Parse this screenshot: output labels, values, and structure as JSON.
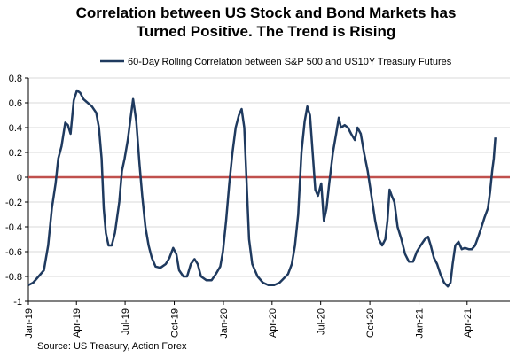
{
  "chart_data": {
    "type": "line",
    "title_line1": "Correlation between US Stock and Bond Markets has",
    "title_line2": "Turned Positive. The Trend is Rising",
    "source": "Source: US Treasury, Action Forex",
    "legend_position": "top",
    "grid": true,
    "ylim": [
      -1,
      0.8
    ],
    "yticks": [
      0.8,
      0.6,
      0.4,
      0.2,
      0,
      -0.2,
      -0.4,
      -0.6,
      -0.8,
      -1
    ],
    "ytick_labels": [
      "0.8",
      "0.6",
      "0.4",
      "0.2",
      "0",
      "-0.2",
      "-0.4",
      "-0.6",
      "-0.8",
      "-1"
    ],
    "xlim": [
      "2019-01-01",
      "2021-06-20"
    ],
    "xticks": [
      {
        "date": "2019-01-01",
        "label": "Jan-19"
      },
      {
        "date": "2019-04-01",
        "label": "Apr-19"
      },
      {
        "date": "2019-07-01",
        "label": "Jul-19"
      },
      {
        "date": "2019-10-01",
        "label": "Oct-19"
      },
      {
        "date": "2020-01-01",
        "label": "Jan-20"
      },
      {
        "date": "2020-04-01",
        "label": "Apr-20"
      },
      {
        "date": "2020-07-01",
        "label": "Jul-20"
      },
      {
        "date": "2020-10-01",
        "label": "Oct-20"
      },
      {
        "date": "2021-01-01",
        "label": "Jan-21"
      },
      {
        "date": "2021-04-01",
        "label": "Apr-21"
      }
    ],
    "zero_line_color": "#c0504d",
    "series": [
      {
        "name": "60-Day Rolling Correlation between S&P 500 and US10Y Treasury Futures",
        "color": "#1f3a5f",
        "points": [
          [
            "2019-01-01",
            -0.87
          ],
          [
            "2019-01-10",
            -0.85
          ],
          [
            "2019-01-20",
            -0.8
          ],
          [
            "2019-01-30",
            -0.75
          ],
          [
            "2019-02-07",
            -0.55
          ],
          [
            "2019-02-14",
            -0.25
          ],
          [
            "2019-02-21",
            -0.05
          ],
          [
            "2019-02-26",
            0.15
          ],
          [
            "2019-03-04",
            0.25
          ],
          [
            "2019-03-11",
            0.44
          ],
          [
            "2019-03-16",
            0.42
          ],
          [
            "2019-03-21",
            0.35
          ],
          [
            "2019-03-27",
            0.62
          ],
          [
            "2019-04-02",
            0.7
          ],
          [
            "2019-04-08",
            0.68
          ],
          [
            "2019-04-14",
            0.63
          ],
          [
            "2019-04-22",
            0.6
          ],
          [
            "2019-04-30",
            0.57
          ],
          [
            "2019-05-08",
            0.52
          ],
          [
            "2019-05-13",
            0.4
          ],
          [
            "2019-05-18",
            0.15
          ],
          [
            "2019-05-22",
            -0.25
          ],
          [
            "2019-05-26",
            -0.45
          ],
          [
            "2019-05-31",
            -0.55
          ],
          [
            "2019-06-06",
            -0.55
          ],
          [
            "2019-06-12",
            -0.45
          ],
          [
            "2019-06-20",
            -0.2
          ],
          [
            "2019-06-25",
            0.05
          ],
          [
            "2019-06-30",
            0.15
          ],
          [
            "2019-07-06",
            0.3
          ],
          [
            "2019-07-12",
            0.5
          ],
          [
            "2019-07-16",
            0.63
          ],
          [
            "2019-07-22",
            0.45
          ],
          [
            "2019-07-28",
            0.1
          ],
          [
            "2019-08-02",
            -0.15
          ],
          [
            "2019-08-08",
            -0.4
          ],
          [
            "2019-08-14",
            -0.55
          ],
          [
            "2019-08-20",
            -0.65
          ],
          [
            "2019-08-27",
            -0.72
          ],
          [
            "2019-09-05",
            -0.73
          ],
          [
            "2019-09-15",
            -0.7
          ],
          [
            "2019-09-22",
            -0.65
          ],
          [
            "2019-09-29",
            -0.57
          ],
          [
            "2019-10-05",
            -0.62
          ],
          [
            "2019-10-10",
            -0.75
          ],
          [
            "2019-10-18",
            -0.8
          ],
          [
            "2019-10-25",
            -0.8
          ],
          [
            "2019-11-01",
            -0.7
          ],
          [
            "2019-11-08",
            -0.66
          ],
          [
            "2019-11-14",
            -0.7
          ],
          [
            "2019-11-20",
            -0.8
          ],
          [
            "2019-11-30",
            -0.83
          ],
          [
            "2019-12-10",
            -0.83
          ],
          [
            "2019-12-18",
            -0.78
          ],
          [
            "2019-12-26",
            -0.72
          ],
          [
            "2019-12-31",
            -0.6
          ],
          [
            "2020-01-06",
            -0.35
          ],
          [
            "2020-01-12",
            -0.05
          ],
          [
            "2020-01-18",
            0.2
          ],
          [
            "2020-01-24",
            0.4
          ],
          [
            "2020-01-30",
            0.5
          ],
          [
            "2020-02-04",
            0.55
          ],
          [
            "2020-02-09",
            0.4
          ],
          [
            "2020-02-14",
            -0.1
          ],
          [
            "2020-02-18",
            -0.5
          ],
          [
            "2020-02-24",
            -0.7
          ],
          [
            "2020-03-05",
            -0.8
          ],
          [
            "2020-03-15",
            -0.85
          ],
          [
            "2020-03-25",
            -0.87
          ],
          [
            "2020-04-05",
            -0.87
          ],
          [
            "2020-04-15",
            -0.85
          ],
          [
            "2020-04-22",
            -0.82
          ],
          [
            "2020-05-01",
            -0.78
          ],
          [
            "2020-05-08",
            -0.7
          ],
          [
            "2020-05-14",
            -0.55
          ],
          [
            "2020-05-20",
            -0.3
          ],
          [
            "2020-05-26",
            0.2
          ],
          [
            "2020-06-01",
            0.45
          ],
          [
            "2020-06-06",
            0.57
          ],
          [
            "2020-06-11",
            0.5
          ],
          [
            "2020-06-16",
            0.2
          ],
          [
            "2020-06-21",
            -0.1
          ],
          [
            "2020-06-26",
            -0.15
          ],
          [
            "2020-07-02",
            -0.05
          ],
          [
            "2020-07-07",
            -0.35
          ],
          [
            "2020-07-12",
            -0.25
          ],
          [
            "2020-07-17",
            -0.05
          ],
          [
            "2020-07-24",
            0.2
          ],
          [
            "2020-07-30",
            0.35
          ],
          [
            "2020-08-04",
            0.48
          ],
          [
            "2020-08-08",
            0.4
          ],
          [
            "2020-08-15",
            0.42
          ],
          [
            "2020-08-21",
            0.4
          ],
          [
            "2020-08-27",
            0.35
          ],
          [
            "2020-09-03",
            0.3
          ],
          [
            "2020-09-08",
            0.4
          ],
          [
            "2020-09-14",
            0.35
          ],
          [
            "2020-09-20",
            0.2
          ],
          [
            "2020-09-27",
            0.05
          ],
          [
            "2020-10-04",
            -0.15
          ],
          [
            "2020-10-11",
            -0.35
          ],
          [
            "2020-10-18",
            -0.5
          ],
          [
            "2020-10-24",
            -0.55
          ],
          [
            "2020-10-30",
            -0.5
          ],
          [
            "2020-11-03",
            -0.35
          ],
          [
            "2020-11-07",
            -0.1
          ],
          [
            "2020-11-11",
            -0.15
          ],
          [
            "2020-11-16",
            -0.2
          ],
          [
            "2020-11-22",
            -0.4
          ],
          [
            "2020-11-29",
            -0.5
          ],
          [
            "2020-12-06",
            -0.62
          ],
          [
            "2020-12-13",
            -0.68
          ],
          [
            "2020-12-21",
            -0.68
          ],
          [
            "2020-12-28",
            -0.6
          ],
          [
            "2021-01-04",
            -0.55
          ],
          [
            "2021-01-12",
            -0.5
          ],
          [
            "2021-01-18",
            -0.48
          ],
          [
            "2021-01-23",
            -0.55
          ],
          [
            "2021-01-29",
            -0.65
          ],
          [
            "2021-02-04",
            -0.7
          ],
          [
            "2021-02-10",
            -0.78
          ],
          [
            "2021-02-17",
            -0.85
          ],
          [
            "2021-02-24",
            -0.88
          ],
          [
            "2021-03-01",
            -0.85
          ],
          [
            "2021-03-05",
            -0.7
          ],
          [
            "2021-03-10",
            -0.55
          ],
          [
            "2021-03-16",
            -0.52
          ],
          [
            "2021-03-22",
            -0.58
          ],
          [
            "2021-03-28",
            -0.57
          ],
          [
            "2021-04-04",
            -0.58
          ],
          [
            "2021-04-10",
            -0.58
          ],
          [
            "2021-04-16",
            -0.55
          ],
          [
            "2021-04-22",
            -0.48
          ],
          [
            "2021-04-28",
            -0.4
          ],
          [
            "2021-05-04",
            -0.32
          ],
          [
            "2021-05-10",
            -0.25
          ],
          [
            "2021-05-14",
            -0.12
          ],
          [
            "2021-05-18",
            0.05
          ],
          [
            "2021-05-21",
            0.15
          ],
          [
            "2021-05-24",
            0.32
          ]
        ]
      }
    ]
  }
}
